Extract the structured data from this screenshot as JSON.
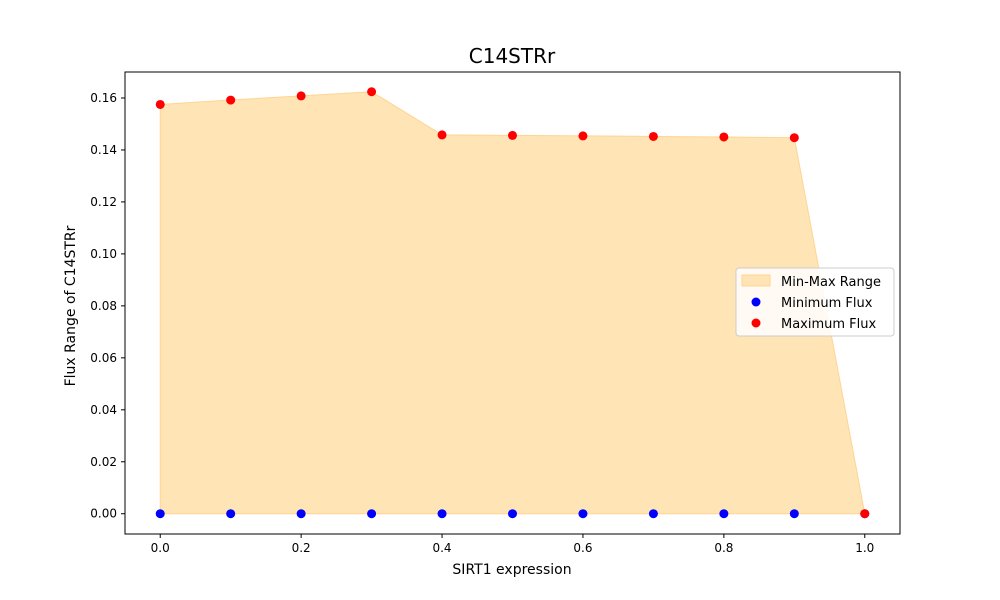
{
  "chart_data": {
    "type": "scatter",
    "title": "C14STRr",
    "xlabel": "SIRT1 expression",
    "ylabel": "Flux Range of C14STRr",
    "x": [
      0.0,
      0.1,
      0.2,
      0.3,
      0.4,
      0.5,
      0.6,
      0.7,
      0.8,
      0.9,
      1.0
    ],
    "series": [
      {
        "name": "Min-Max Range",
        "kind": "area",
        "color": "#FFE4B5",
        "stroke": "#FFD492"
      },
      {
        "name": "Minimum Flux",
        "kind": "points",
        "color": "#0000FF",
        "values": [
          0,
          0,
          0,
          0,
          0,
          0,
          0,
          0,
          0,
          0,
          0
        ]
      },
      {
        "name": "Maximum Flux",
        "kind": "points",
        "color": "#FF0000",
        "values": [
          0.1575,
          0.1592,
          0.1608,
          0.1624,
          0.1458,
          0.1456,
          0.1454,
          0.1452,
          0.145,
          0.1447,
          0.0
        ]
      }
    ],
    "xlim": [
      -0.05,
      1.05
    ],
    "ylim": [
      -0.0078,
      0.17
    ],
    "xticks": [
      "0.0",
      "0.2",
      "0.4",
      "0.6",
      "0.8",
      "1.0"
    ],
    "yticks": [
      "0.00",
      "0.02",
      "0.04",
      "0.06",
      "0.08",
      "0.10",
      "0.12",
      "0.14",
      "0.16"
    ],
    "grid": false,
    "legend_position": "center-right"
  }
}
